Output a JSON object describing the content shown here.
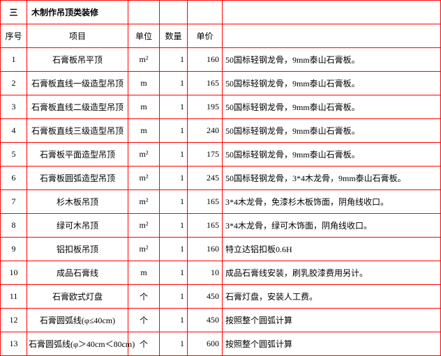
{
  "section": {
    "number": "三",
    "title": "木制作吊顶类装修"
  },
  "headers": {
    "seq": "序号",
    "project": "项目",
    "unit": "单位",
    "qty": "数量",
    "price": "单价"
  },
  "rows": [
    {
      "seq": "1",
      "project": "石膏板吊平顶",
      "unit": "m²",
      "qty": "1",
      "price": "160",
      "desc": "50国标轻钢龙骨，9mm泰山石膏板。"
    },
    {
      "seq": "2",
      "project": "石膏板直线一级造型吊顶",
      "unit": "m",
      "qty": "1",
      "price": "165",
      "desc": "50国标轻钢龙骨，9mm泰山石膏板。"
    },
    {
      "seq": "3",
      "project": "石膏板直线二级造型吊顶",
      "unit": "m",
      "qty": "1",
      "price": "195",
      "desc": "50国标轻钢龙骨，9mm泰山石膏板。"
    },
    {
      "seq": "4",
      "project": "石膏板直线三级造型吊顶",
      "unit": "m",
      "qty": "1",
      "price": "240",
      "desc": "50国标轻钢龙骨，9mm泰山石膏板。"
    },
    {
      "seq": "5",
      "project": "石膏板平面造型吊顶",
      "unit": "m²",
      "qty": "1",
      "price": "175",
      "desc": "50国标轻钢龙骨，9mm泰山石膏板。"
    },
    {
      "seq": "6",
      "project": "石膏板圆弧造型吊顶",
      "unit": "m²",
      "qty": "1",
      "price": "245",
      "desc": "50国标轻钢龙骨，3*4木龙骨，9mm泰山石膏板。"
    },
    {
      "seq": "7",
      "project": "杉木板吊顶",
      "unit": "m²",
      "qty": "1",
      "price": "165",
      "desc": "3*4木龙骨，免漆杉木板饰面，阴角线收口。"
    },
    {
      "seq": "8",
      "project": "绿可木吊顶",
      "unit": "m²",
      "qty": "1",
      "price": "165",
      "desc": "3*4木龙骨，绿可木饰面，阴角线收口。"
    },
    {
      "seq": "9",
      "project": "铝扣板吊顶",
      "unit": "m²",
      "qty": "1",
      "price": "160",
      "desc": "特立达铝扣板0.6H"
    },
    {
      "seq": "10",
      "project": "成品石膏线",
      "unit": "m",
      "qty": "1",
      "price": "10",
      "desc": "成品石膏线安装，刷乳胶漆费用另计。"
    },
    {
      "seq": "11",
      "project": "石膏欧式灯盘",
      "unit": "个",
      "qty": "1",
      "price": "450",
      "desc": "石膏灯盘，安装人工费。"
    },
    {
      "seq": "12",
      "project": "石膏圆弧线(φ≤40cm)",
      "unit": "个",
      "qty": "1",
      "price": "450",
      "desc": "按照整个圆弧计算"
    },
    {
      "seq": "13",
      "project": "石膏圆弧线(φ＞40cm＜80cm)",
      "unit": "个",
      "qty": "1",
      "price": "600",
      "desc": "按照整个圆弧计算"
    }
  ],
  "colors": {
    "border": "#ff0000",
    "text": "#000000",
    "background": "#ffffff"
  }
}
